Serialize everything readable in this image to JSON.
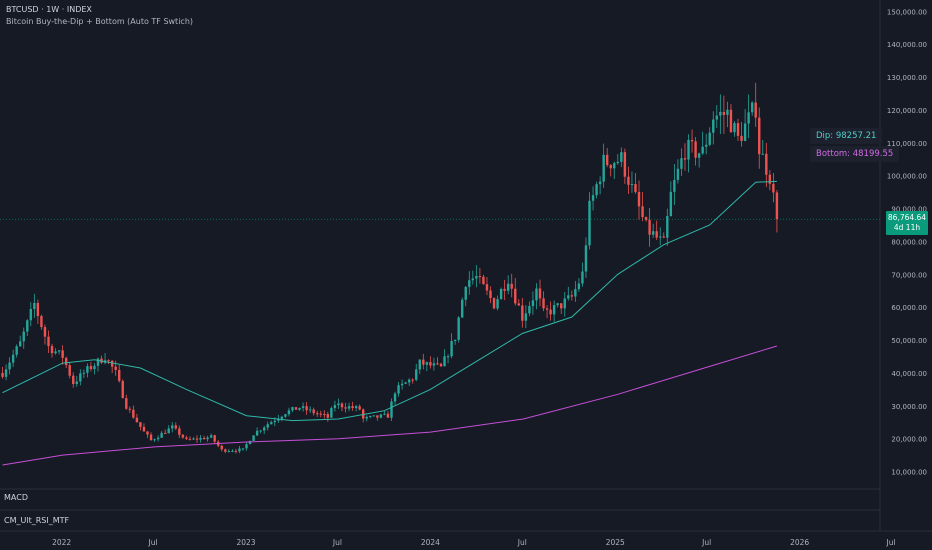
{
  "header": {
    "symbol_line": "BTCUSD · 1W · INDEX",
    "indicator_name": "Bitcoin Buy-the-Dip + Bottom (Auto TF Swtich)"
  },
  "indicators": {
    "macd": "MACD",
    "rsi": "CM_Ult_RSI_MTF"
  },
  "tags": {
    "dip": "Dip: 98257.21",
    "bottom": "Bottom: 48199.55"
  },
  "price_tag": {
    "value": "86,764.64",
    "countdown": "4d 11h"
  },
  "colors": {
    "up": "#26a69a",
    "down": "#ef5350",
    "ma_fast": "#2fb8a8",
    "ma_slow": "#c64fd8",
    "dip_text": "#4dd0c8",
    "bottom_text": "#d36be6",
    "price_tag_bg": "#0a9b7c"
  },
  "chart_data": {
    "type": "candlestick",
    "title": "",
    "y_ticks": [
      "10,000.00",
      "20,000.00",
      "30,000.00",
      "40,000.00",
      "50,000.00",
      "60,000.00",
      "70,000.00",
      "80,000.00",
      "90,000.00",
      "100,000.00",
      "110,000.00",
      "120,000.00",
      "130,000.00",
      "140,000.00",
      "150,000.00"
    ],
    "x_ticks": [
      "2022",
      "Jul",
      "2023",
      "Jul",
      "2024",
      "Jul",
      "2025",
      "Jul",
      "2026",
      "Jul"
    ],
    "ylim": [
      5000,
      151000
    ],
    "x_range": [
      "2021-09-01",
      "2026-09-20"
    ],
    "last_price": 86764.64,
    "close_series": [
      [
        "2021-09-06",
        40000
      ],
      [
        "2021-10-11",
        49000
      ],
      [
        "2021-11-08",
        61000
      ],
      [
        "2021-12-06",
        48000
      ],
      [
        "2022-01-03",
        45000
      ],
      [
        "2022-01-24",
        37000
      ],
      [
        "2022-02-21",
        41000
      ],
      [
        "2022-03-28",
        45000
      ],
      [
        "2022-04-18",
        40000
      ],
      [
        "2022-05-09",
        30000
      ],
      [
        "2022-06-13",
        22000
      ],
      [
        "2022-06-27",
        19500
      ],
      [
        "2022-08-08",
        23500
      ],
      [
        "2022-09-05",
        19500
      ],
      [
        "2022-10-24",
        20500
      ],
      [
        "2022-11-14",
        16500
      ],
      [
        "2022-12-26",
        16600
      ],
      [
        "2023-01-16",
        21500
      ],
      [
        "2023-02-13",
        24500
      ],
      [
        "2023-03-20",
        28000
      ],
      [
        "2023-04-17",
        29500
      ],
      [
        "2023-06-12",
        26500
      ],
      [
        "2023-06-26",
        30500
      ],
      [
        "2023-08-14",
        29000
      ],
      [
        "2023-08-21",
        26000
      ],
      [
        "2023-10-09",
        27000
      ],
      [
        "2023-10-23",
        34500
      ],
      [
        "2023-11-27",
        38500
      ],
      [
        "2023-12-11",
        43000
      ],
      [
        "2024-01-22",
        41500
      ],
      [
        "2024-02-19",
        51000
      ],
      [
        "2024-03-11",
        68000
      ],
      [
        "2024-04-01",
        69000
      ],
      [
        "2024-05-06",
        61000
      ],
      [
        "2024-06-03",
        69000
      ],
      [
        "2024-07-01",
        57000
      ],
      [
        "2024-07-29",
        65000
      ],
      [
        "2024-08-12",
        58000
      ],
      [
        "2024-09-09",
        60000
      ],
      [
        "2024-10-07",
        63000
      ],
      [
        "2024-10-28",
        70000
      ],
      [
        "2024-11-11",
        90000
      ],
      [
        "2024-12-09",
        104000
      ],
      [
        "2025-01-13",
        105000
      ],
      [
        "2025-02-03",
        96000
      ],
      [
        "2025-03-03",
        84000
      ],
      [
        "2025-04-07",
        79000
      ],
      [
        "2025-04-21",
        94000
      ],
      [
        "2025-05-19",
        108000
      ],
      [
        "2025-06-23",
        107000
      ],
      [
        "2025-07-14",
        118000
      ],
      [
        "2025-08-11",
        119000
      ],
      [
        "2025-09-01",
        111000
      ],
      [
        "2025-10-06",
        121000
      ],
      [
        "2025-10-13",
        108000
      ],
      [
        "2025-11-03",
        100000
      ],
      [
        "2025-11-17",
        86764
      ]
    ],
    "series": [
      {
        "name": "",
        "color": "#2fb8a8",
        "points": [
          [
            "2021-09-06",
            34000
          ],
          [
            "2022-01-03",
            43000
          ],
          [
            "2022-03-07",
            44000
          ],
          [
            "2022-06-06",
            41500
          ],
          [
            "2022-09-05",
            35000
          ],
          [
            "2023-01-02",
            27000
          ],
          [
            "2023-04-03",
            25500
          ],
          [
            "2023-07-03",
            26000
          ],
          [
            "2023-10-02",
            28500
          ],
          [
            "2024-01-01",
            35000
          ],
          [
            "2024-04-01",
            43500
          ],
          [
            "2024-07-01",
            52000
          ],
          [
            "2024-10-07",
            57000
          ],
          [
            "2025-01-06",
            70000
          ],
          [
            "2025-04-07",
            79000
          ],
          [
            "2025-07-07",
            85000
          ],
          [
            "2025-10-06",
            98000
          ],
          [
            "2025-11-17",
            98257
          ]
        ]
      },
      {
        "name": "",
        "color": "#c64fd8",
        "points": [
          [
            "2021-09-06",
            12000
          ],
          [
            "2022-01-03",
            15000
          ],
          [
            "2022-07-04",
            17500
          ],
          [
            "2023-01-02",
            19000
          ],
          [
            "2023-07-03",
            20000
          ],
          [
            "2024-01-01",
            22000
          ],
          [
            "2024-07-03",
            26000
          ],
          [
            "2025-01-06",
            33500
          ],
          [
            "2025-07-07",
            42000
          ],
          [
            "2025-11-17",
            48200
          ]
        ]
      }
    ]
  }
}
